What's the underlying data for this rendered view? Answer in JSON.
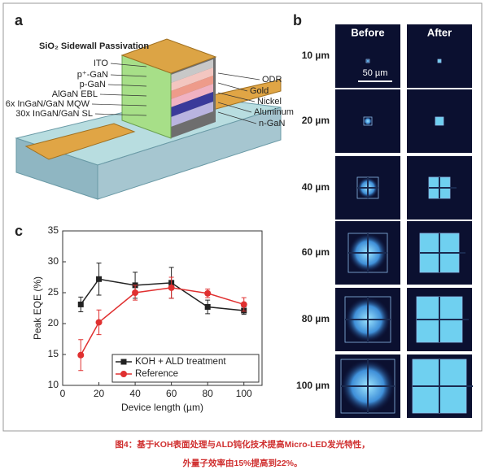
{
  "panel_a": {
    "label": "a",
    "title": "SiO₂ Sidewall Passivation",
    "left_labels": [
      "ITO",
      "p⁺-GaN",
      "p-GaN",
      "AlGaN EBL",
      "6x InGaN/GaN MQW",
      "30x InGaN/GaN SL"
    ],
    "right_labels": [
      "ODR",
      "Gold",
      "Nickel",
      "Aluminum",
      "n-GaN"
    ]
  },
  "panel_b": {
    "label": "b",
    "columns": [
      "Before",
      "After"
    ],
    "rows": [
      "10 µm",
      "20 µm",
      "40 µm",
      "60 µm",
      "80 µm",
      "100 µm"
    ],
    "scale_bar": "50 µm"
  },
  "chart_data": {
    "type": "line",
    "label": "c",
    "x_label": "Device length (µm)",
    "y_label": "Peak EQE (%)",
    "x": [
      10,
      20,
      40,
      60,
      80,
      100
    ],
    "series": [
      {
        "name": "KOH + ALD treatment",
        "color": "#222222",
        "marker": "square",
        "values": [
          23.1,
          27.2,
          26.2,
          26.6,
          22.7,
          22.1
        ],
        "errors": [
          1.2,
          2.6,
          2.1,
          2.5,
          1.1,
          0.6
        ]
      },
      {
        "name": "Reference",
        "color": "#e03030",
        "marker": "circle",
        "values": [
          14.9,
          20.2,
          25.0,
          25.8,
          24.9,
          23.1
        ],
        "errors": [
          2.5,
          2.0,
          1.2,
          1.7,
          0.7,
          1.1
        ]
      }
    ],
    "xlim": [
      0,
      110
    ],
    "xticks": [
      0,
      20,
      40,
      60,
      80,
      100
    ],
    "ylim": [
      10,
      35
    ],
    "yticks": [
      10,
      15,
      20,
      25,
      30,
      35
    ],
    "legend": "lower right"
  },
  "caption": [
    "图4：基于KOH表面处理与ALD钝化技术提高Micro-LED发光特性，",
    "外量子效率由15%提高到22%。"
  ]
}
